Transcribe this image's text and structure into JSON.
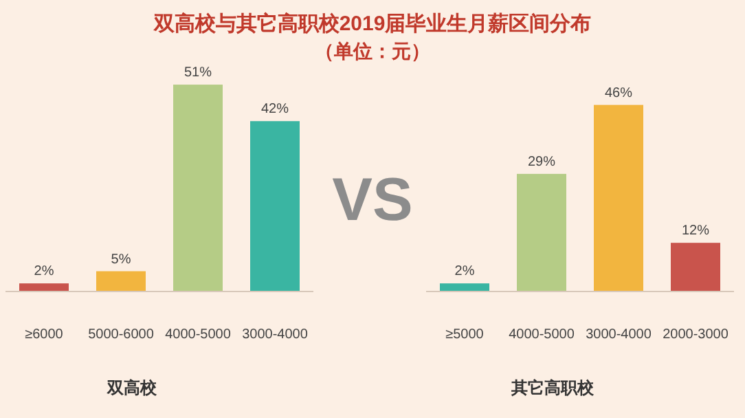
{
  "chart_data": [
    {
      "type": "bar",
      "title": "双高校与其它高职校2019届毕业生月薪区间分布",
      "subtitle": "（单位：元）",
      "xlabel": "双高校",
      "annotations": [
        "VS"
      ],
      "categories": [
        "≥6000",
        "5000-6000",
        "4000-5000",
        "3000-4000"
      ],
      "values": [
        2,
        5,
        51,
        42
      ],
      "colors": [
        "#c9544c",
        "#f2b53f",
        "#b5cc86",
        "#3ab5a2"
      ],
      "value_labels": [
        "2%",
        "5%",
        "51%",
        "42%"
      ]
    },
    {
      "type": "bar",
      "xlabel": "其它高职校",
      "categories": [
        "≥5000",
        "4000-5000",
        "3000-4000",
        "2000-3000"
      ],
      "values": [
        2,
        29,
        46,
        12
      ],
      "colors": [
        "#3ab5a2",
        "#b5cc86",
        "#f2b53f",
        "#c9544c"
      ],
      "value_labels": [
        "2%",
        "29%",
        "46%",
        "12%"
      ]
    }
  ]
}
